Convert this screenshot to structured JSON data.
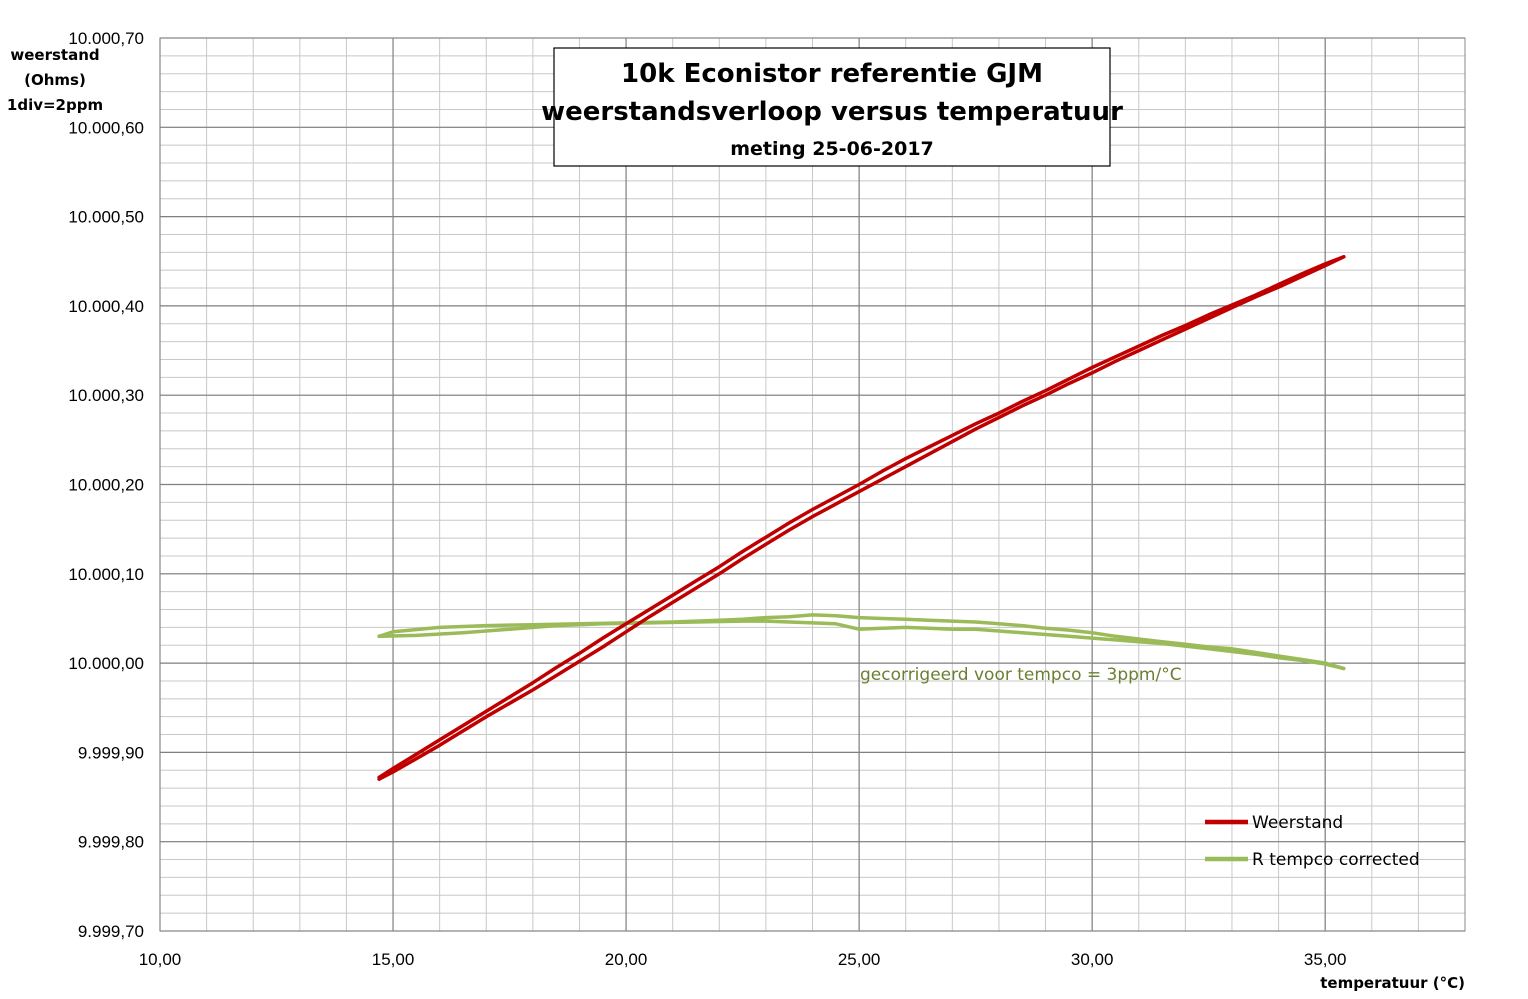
{
  "chart_data": {
    "type": "line",
    "title": "10k Econistor referentie GJM",
    "title_line2": "weerstandsverloop versus temperatuur",
    "subtitle": "meting 25-06-2017",
    "ylabel": "weerstand",
    "ylabel_unit": "(Ohms)",
    "ylabel_div": "1div=2ppm",
    "xlabel": "temperatuur (°C)",
    "xlim": [
      10,
      38
    ],
    "ylim": [
      9999.7,
      10000.7
    ],
    "x_major_ticks": [
      10,
      15,
      20,
      25,
      30,
      35
    ],
    "x_tick_labels": [
      "10,00",
      "15,00",
      "20,00",
      "25,00",
      "30,00",
      "35,00"
    ],
    "x_minor_step": 1,
    "y_major_ticks": [
      9999.7,
      9999.8,
      9999.9,
      10000.0,
      10000.1,
      10000.2,
      10000.3,
      10000.4,
      10000.5,
      10000.6,
      10000.7
    ],
    "y_tick_labels": [
      "9.999,70",
      "9.999,80",
      "9.999,90",
      "10.000,00",
      "10.000,10",
      "10.000,20",
      "10.000,30",
      "10.000,40",
      "10.000,50",
      "10.000,60",
      "10.000,70"
    ],
    "y_minor_step": 0.02,
    "grid": true,
    "legend_position": "bottom-right",
    "annotation": "gecorrigeerd voor tempco = 3ppm/°C",
    "series": [
      {
        "name": "Weerstand",
        "color": "#c00000",
        "branches": [
          {
            "x": [
              14.7,
              15.0,
              15.5,
              16.0,
              16.5,
              17.0,
              17.5,
              18.0,
              18.5,
              19.0,
              19.5,
              20.0,
              20.5,
              21.0,
              21.5,
              22.0,
              22.5,
              23.0,
              23.5,
              24.0,
              24.5,
              25.0,
              25.5,
              26.0,
              26.5,
              27.0,
              27.5,
              28.0,
              28.5,
              29.0,
              29.5,
              30.0,
              30.5,
              31.0,
              31.5,
              32.0,
              32.5,
              33.0,
              33.5,
              34.0,
              34.5,
              35.0,
              35.4
            ],
            "y": [
              9999.87,
              9999.878,
              9999.893,
              9999.908,
              9999.924,
              9999.94,
              9999.955,
              9999.97,
              9999.986,
              10000.002,
              10000.018,
              10000.035,
              10000.052,
              10000.068,
              10000.084,
              10000.1,
              10000.117,
              10000.133,
              10000.149,
              10000.164,
              10000.178,
              10000.192,
              10000.206,
              10000.22,
              10000.234,
              10000.248,
              10000.262,
              10000.275,
              10000.288,
              10000.3,
              10000.313,
              10000.325,
              10000.338,
              10000.35,
              10000.362,
              10000.374,
              10000.386,
              10000.398,
              10000.41,
              10000.421,
              10000.433,
              10000.445,
              10000.455
            ]
          },
          {
            "x": [
              35.4,
              35.0,
              34.5,
              34.0,
              33.5,
              33.0,
              32.5,
              32.0,
              31.5,
              31.0,
              30.5,
              30.0,
              29.5,
              29.0,
              28.5,
              28.0,
              27.5,
              27.0,
              26.5,
              26.0,
              25.5,
              25.0,
              24.5,
              24.0,
              23.5,
              23.0,
              22.5,
              22.0,
              21.5,
              21.0,
              20.5,
              20.0,
              19.5,
              19.0,
              18.5,
              18.0,
              17.5,
              17.0,
              16.5,
              16.0,
              15.5,
              15.0,
              14.7
            ],
            "y": [
              10000.455,
              10000.447,
              10000.436,
              10000.424,
              10000.412,
              10000.401,
              10000.39,
              10000.378,
              10000.367,
              10000.355,
              10000.343,
              10000.331,
              10000.318,
              10000.305,
              10000.293,
              10000.28,
              10000.268,
              10000.255,
              10000.242,
              10000.229,
              10000.215,
              10000.2,
              10000.186,
              10000.172,
              10000.157,
              10000.141,
              10000.125,
              10000.108,
              10000.092,
              10000.076,
              10000.06,
              10000.044,
              10000.028,
              10000.011,
              9999.995,
              9999.978,
              9999.962,
              9999.946,
              9999.93,
              9999.914,
              9999.898,
              9999.882,
              9999.872
            ]
          }
        ]
      },
      {
        "name": "R tempco  corrected",
        "color": "#9bbb59",
        "branches": [
          {
            "x": [
              14.7,
              15.5,
              16.5,
              17.5,
              18.5,
              19.5,
              20.5,
              21.5,
              22.5,
              23.0,
              23.5,
              24.0,
              24.5,
              25.0,
              25.5,
              26.0,
              26.5,
              27.0,
              27.5,
              28.0,
              28.5,
              29.0,
              29.5,
              30.0,
              30.5,
              31.0,
              31.5,
              32.0,
              32.5,
              33.0,
              33.5,
              34.0,
              34.5,
              35.0,
              35.4
            ],
            "y": [
              10000.03,
              10000.031,
              10000.034,
              10000.038,
              10000.042,
              10000.044,
              10000.045,
              10000.046,
              10000.047,
              10000.047,
              10000.046,
              10000.045,
              10000.044,
              10000.038,
              10000.039,
              10000.04,
              10000.039,
              10000.038,
              10000.038,
              10000.036,
              10000.034,
              10000.032,
              10000.03,
              10000.028,
              10000.026,
              10000.024,
              10000.022,
              10000.019,
              10000.016,
              10000.013,
              10000.01,
              10000.006,
              10000.003,
              9999.999,
              9999.994
            ]
          },
          {
            "x": [
              35.4,
              35.0,
              34.5,
              34.0,
              33.5,
              33.0,
              32.5,
              32.0,
              31.5,
              31.0,
              30.5,
              30.0,
              29.5,
              29.0,
              28.5,
              28.0,
              27.5,
              27.0,
              26.5,
              26.0,
              25.5,
              25.0,
              24.5,
              24.0,
              23.5,
              23.0,
              22.5,
              22.0,
              21.0,
              20.0,
              19.0,
              18.0,
              17.0,
              16.0,
              15.0,
              14.7
            ],
            "y": [
              9999.994,
              10000.0,
              10000.004,
              10000.008,
              10000.012,
              10000.016,
              10000.018,
              10000.021,
              10000.024,
              10000.027,
              10000.03,
              10000.034,
              10000.037,
              10000.039,
              10000.042,
              10000.044,
              10000.046,
              10000.047,
              10000.048,
              10000.049,
              10000.05,
              10000.051,
              10000.053,
              10000.054,
              10000.052,
              10000.051,
              10000.049,
              10000.048,
              10000.046,
              10000.045,
              10000.044,
              10000.043,
              10000.042,
              10000.04,
              10000.035,
              10000.03
            ]
          }
        ]
      }
    ]
  }
}
